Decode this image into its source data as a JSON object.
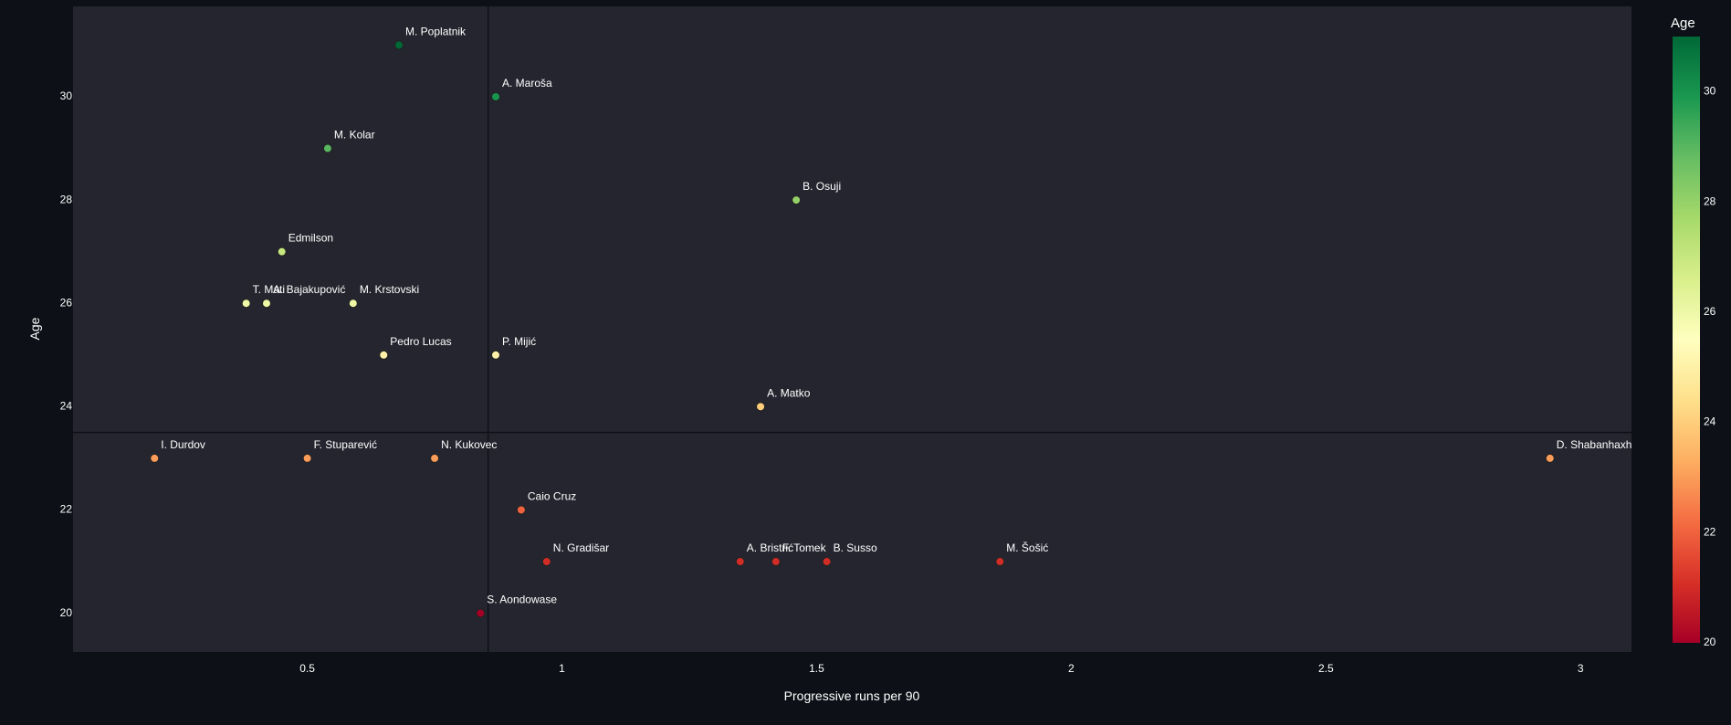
{
  "chart_data": {
    "type": "scatter",
    "xlabel": "Progressive runs per 90",
    "ylabel": "Age",
    "xlim": [
      0.04,
      3.1
    ],
    "ylim": [
      19.25,
      31.75
    ],
    "xticks": [
      0.5,
      1,
      1.5,
      2,
      2.5,
      3
    ],
    "xtick_labels": [
      "0.5",
      "1",
      "1.5",
      "2",
      "2.5",
      "3"
    ],
    "yticks": [
      20,
      22,
      24,
      26,
      28,
      30
    ],
    "ytick_labels": [
      "20",
      "22",
      "24",
      "26",
      "28",
      "30"
    ],
    "reference_lines": {
      "x": 0.855,
      "y": 23.5
    },
    "grid": false,
    "colorbar": {
      "title": "Age",
      "range": [
        20,
        31
      ],
      "ticks": [
        20,
        22,
        24,
        26,
        28,
        30
      ],
      "tick_labels": [
        "20",
        "22",
        "24",
        "26",
        "28",
        "30"
      ],
      "colorscale": [
        "#a50026",
        "#d73027",
        "#f46d43",
        "#fdae61",
        "#fee08b",
        "#ffffbf",
        "#d9ef8b",
        "#a6d96a",
        "#66bd63",
        "#1a9850",
        "#006837"
      ]
    },
    "points": [
      {
        "name": "M. Poplatnik",
        "x": 0.68,
        "y": 31
      },
      {
        "name": "A. Maroša",
        "x": 0.87,
        "y": 30
      },
      {
        "name": "M. Kolar",
        "x": 0.54,
        "y": 29
      },
      {
        "name": "B. Osuji",
        "x": 1.46,
        "y": 28
      },
      {
        "name": "Edmilson",
        "x": 0.45,
        "y": 27
      },
      {
        "name": "T. Mati",
        "x": 0.38,
        "y": 26
      },
      {
        "name": "A. Bajakupović",
        "x": 0.42,
        "y": 26
      },
      {
        "name": "M. Krstovski",
        "x": 0.59,
        "y": 26
      },
      {
        "name": "Pedro Lucas",
        "x": 0.65,
        "y": 25
      },
      {
        "name": "P. Mijić",
        "x": 0.87,
        "y": 25
      },
      {
        "name": "A. Matko",
        "x": 1.39,
        "y": 24
      },
      {
        "name": "I. Durdov",
        "x": 0.2,
        "y": 23
      },
      {
        "name": "F. Stuparević",
        "x": 0.5,
        "y": 23
      },
      {
        "name": "N. Kukovec",
        "x": 0.75,
        "y": 23
      },
      {
        "name": "D. Shabanhaxhaj",
        "x": 2.94,
        "y": 23
      },
      {
        "name": "Caio Cruz",
        "x": 0.92,
        "y": 22
      },
      {
        "name": "N. Gradišar",
        "x": 0.97,
        "y": 21
      },
      {
        "name": "A. Bristrić",
        "x": 1.35,
        "y": 21
      },
      {
        "name": "F. Tomek",
        "x": 1.42,
        "y": 21
      },
      {
        "name": "B. Susso",
        "x": 1.52,
        "y": 21
      },
      {
        "name": "M. Šošić",
        "x": 1.86,
        "y": 21
      },
      {
        "name": "S. Aondowase",
        "x": 0.84,
        "y": 20
      }
    ]
  }
}
